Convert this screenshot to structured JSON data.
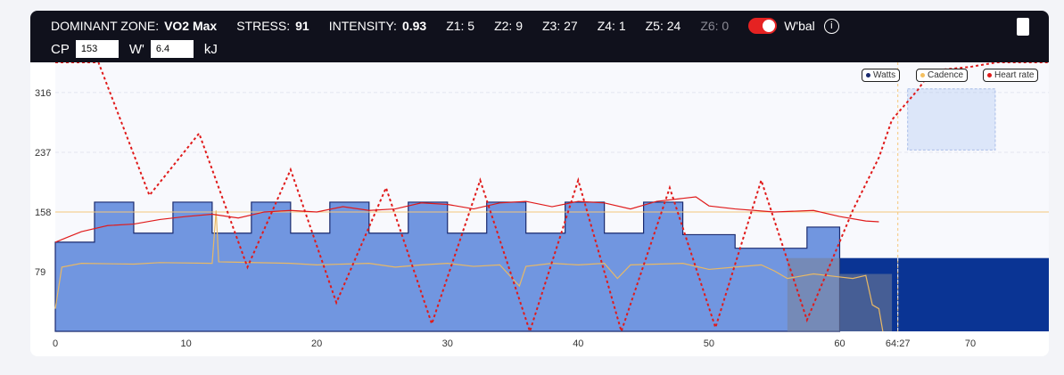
{
  "header": {
    "dominant_label": "DOMINANT ZONE:",
    "dominant_value": "VO2 Max",
    "stress_label": "STRESS:",
    "stress_value": "91",
    "intensity_label": "INTENSITY:",
    "intensity_value": "0.93",
    "z1": "Z1: 5",
    "z2": "Z2: 9",
    "z3": "Z3: 27",
    "z4": "Z4: 1",
    "z5": "Z5: 24",
    "z6": "Z6: 0",
    "wbal_label": "W'bal",
    "wbal_on": true,
    "info_icon": "i",
    "cp_label": "CP",
    "cp_value": "153",
    "w_label": "W'",
    "w_value": "6.4",
    "w_unit": "kJ"
  },
  "colors": {
    "watts_fill": "#7196e0",
    "watts_stroke": "#1a2a6e",
    "wbal": "#0a3494",
    "hr": "#e01b1b",
    "cadence": "#e8b865",
    "threshold": "#f5c77a"
  },
  "chart_data": {
    "type": "line",
    "legend": [
      "Watts",
      "Cadence",
      "Heart rate"
    ],
    "legend_placement": "top-right",
    "xlim": [
      0,
      76
    ],
    "ylim": [
      0,
      356
    ],
    "xticks": [
      0,
      10,
      20,
      30,
      40,
      50,
      60,
      70
    ],
    "xtick_labels": [
      "0",
      "10",
      "20",
      "30",
      "40",
      "50",
      "60",
      "70"
    ],
    "yticks": [
      79,
      158,
      237,
      316
    ],
    "marker_label": "64:27",
    "marker_x": 64.45,
    "threshold": 158,
    "watts_steps": [
      [
        0,
        118
      ],
      [
        3,
        171
      ],
      [
        6,
        130
      ],
      [
        9,
        171
      ],
      [
        12,
        130
      ],
      [
        15,
        171
      ],
      [
        18,
        130
      ],
      [
        21,
        171
      ],
      [
        24,
        130
      ],
      [
        27,
        171
      ],
      [
        30,
        130
      ],
      [
        33,
        171
      ],
      [
        36,
        130
      ],
      [
        39,
        171
      ],
      [
        42,
        130
      ],
      [
        45,
        171
      ],
      [
        48,
        128
      ],
      [
        52,
        110
      ],
      [
        57.5,
        138
      ],
      [
        60,
        138
      ]
    ],
    "wbal": {
      "start": 56,
      "value": 97
    },
    "overlay": [
      [
        56,
        60,
        97
      ],
      [
        60,
        64,
        76
      ]
    ],
    "selection": {
      "x": [
        65.2,
        71.9
      ],
      "y": [
        240,
        321
      ]
    },
    "hr_line": [
      [
        0,
        118
      ],
      [
        1,
        125
      ],
      [
        2,
        132
      ],
      [
        4,
        140
      ],
      [
        6,
        142
      ],
      [
        8,
        148
      ],
      [
        10,
        152
      ],
      [
        12,
        155
      ],
      [
        14,
        150
      ],
      [
        16,
        158
      ],
      [
        18,
        160
      ],
      [
        20,
        158
      ],
      [
        22,
        165
      ],
      [
        24,
        160
      ],
      [
        26,
        162
      ],
      [
        28,
        170
      ],
      [
        30,
        168
      ],
      [
        32,
        162
      ],
      [
        34,
        170
      ],
      [
        36,
        172
      ],
      [
        38,
        165
      ],
      [
        40,
        172
      ],
      [
        42,
        170
      ],
      [
        44,
        162
      ],
      [
        46,
        172
      ],
      [
        48,
        176
      ],
      [
        49,
        178
      ],
      [
        50,
        166
      ],
      [
        52,
        162
      ],
      [
        55,
        158
      ],
      [
        58,
        160
      ],
      [
        60,
        152
      ],
      [
        62,
        146
      ],
      [
        63,
        145
      ]
    ],
    "wbal_dotted": [
      [
        0,
        356
      ],
      [
        3.3,
        356
      ],
      [
        7.2,
        180
      ],
      [
        11,
        262
      ],
      [
        14.7,
        85
      ],
      [
        18,
        214
      ],
      [
        21.5,
        38
      ],
      [
        25.3,
        190
      ],
      [
        28.8,
        10
      ],
      [
        32.5,
        200
      ],
      [
        36.3,
        0
      ],
      [
        40,
        200
      ],
      [
        43.3,
        0
      ],
      [
        47,
        190
      ],
      [
        50.5,
        5
      ],
      [
        54,
        200
      ],
      [
        57.5,
        15
      ],
      [
        61,
        160
      ],
      [
        63,
        230
      ],
      [
        64,
        280
      ],
      [
        66,
        320
      ],
      [
        67,
        345
      ],
      [
        70,
        350
      ],
      [
        72,
        356
      ],
      [
        76,
        356
      ]
    ],
    "cadence": [
      [
        0,
        30
      ],
      [
        0.5,
        85
      ],
      [
        2,
        90
      ],
      [
        6,
        89
      ],
      [
        8,
        91
      ],
      [
        12,
        90
      ],
      [
        12.3,
        160
      ],
      [
        12.5,
        92
      ],
      [
        18,
        90
      ],
      [
        20,
        88
      ],
      [
        24,
        90
      ],
      [
        26,
        85
      ],
      [
        28,
        88
      ],
      [
        30,
        90
      ],
      [
        32,
        86
      ],
      [
        34,
        88
      ],
      [
        35.5,
        60
      ],
      [
        36,
        86
      ],
      [
        38,
        90
      ],
      [
        40,
        88
      ],
      [
        42,
        90
      ],
      [
        43,
        70
      ],
      [
        44,
        88
      ],
      [
        48,
        90
      ],
      [
        50,
        82
      ],
      [
        52,
        85
      ],
      [
        54,
        88
      ],
      [
        55,
        80
      ],
      [
        56,
        70
      ],
      [
        58,
        76
      ],
      [
        60,
        72
      ],
      [
        61,
        70
      ],
      [
        62,
        74
      ],
      [
        62.5,
        35
      ],
      [
        63,
        30
      ],
      [
        63.3,
        0
      ]
    ]
  }
}
